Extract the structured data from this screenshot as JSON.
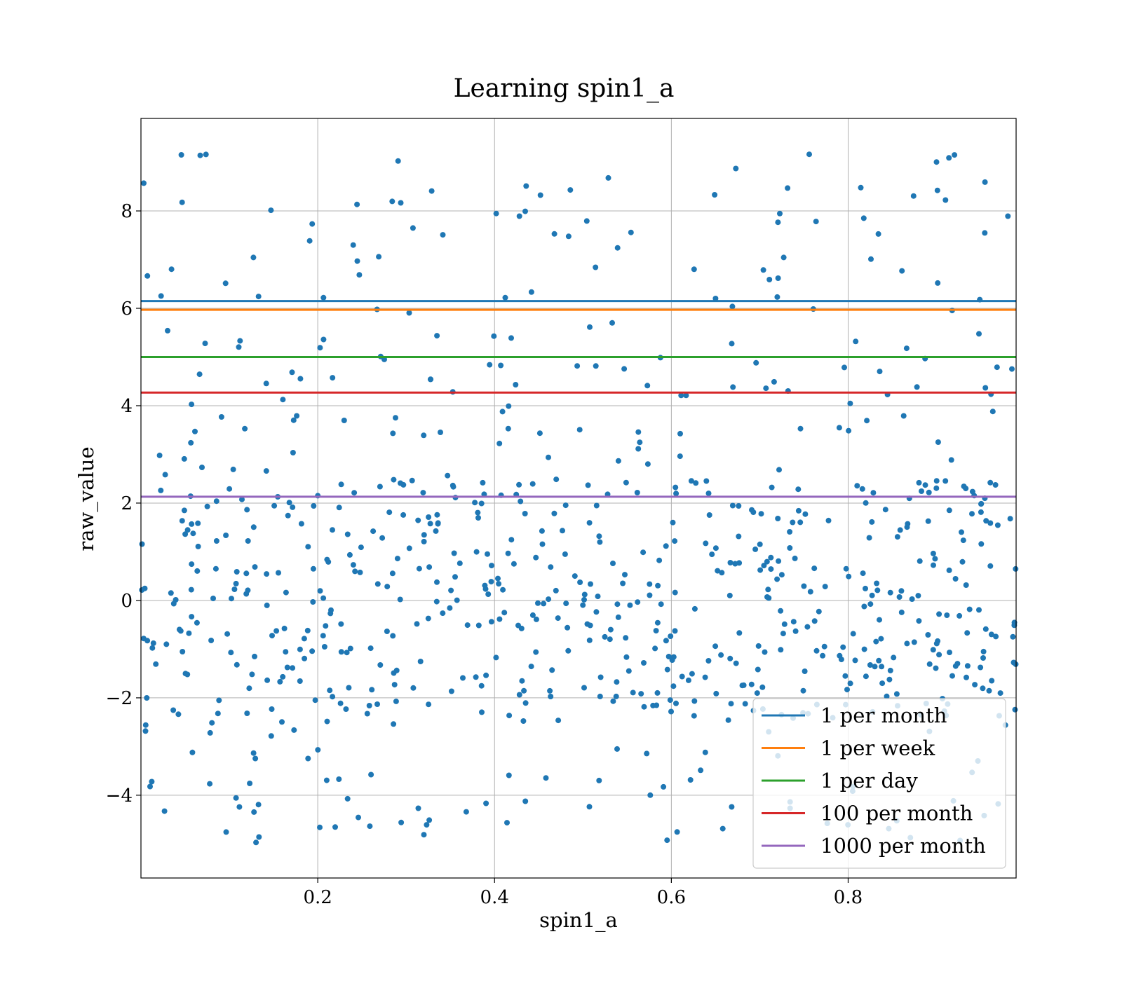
{
  "chart_data": {
    "type": "scatter",
    "title": "Learning spin1_a",
    "xlabel": "spin1_a",
    "ylabel": "raw_value",
    "xlim": [
      0.0,
      0.99
    ],
    "ylim": [
      -5.7,
      9.9
    ],
    "x_ticks": [
      0.2,
      0.4,
      0.6,
      0.8
    ],
    "y_ticks": [
      -4,
      -2,
      0,
      2,
      4,
      6,
      8
    ],
    "x_tick_labels": [
      "0.2",
      "0.4",
      "0.6",
      "0.8"
    ],
    "y_tick_labels": [
      "−4",
      "−2",
      "0",
      "2",
      "4",
      "6",
      "8"
    ],
    "grid": true,
    "legend_position": "lower-right",
    "scatter": {
      "color": "#1f77b4",
      "count": 800,
      "x_range": [
        0.0,
        0.99
      ],
      "y_range": [
        -5.0,
        9.2
      ]
    },
    "hlines": [
      {
        "name": "1 per month",
        "y": 6.15,
        "color": "#1f77b4"
      },
      {
        "name": "1 per week",
        "y": 5.97,
        "color": "#ff7f0e"
      },
      {
        "name": "1 per day",
        "y": 5.0,
        "color": "#2ca02c"
      },
      {
        "name": "100 per month",
        "y": 4.27,
        "color": "#d62728"
      },
      {
        "name": "1000 per month",
        "y": 2.13,
        "color": "#9467bd"
      }
    ]
  }
}
